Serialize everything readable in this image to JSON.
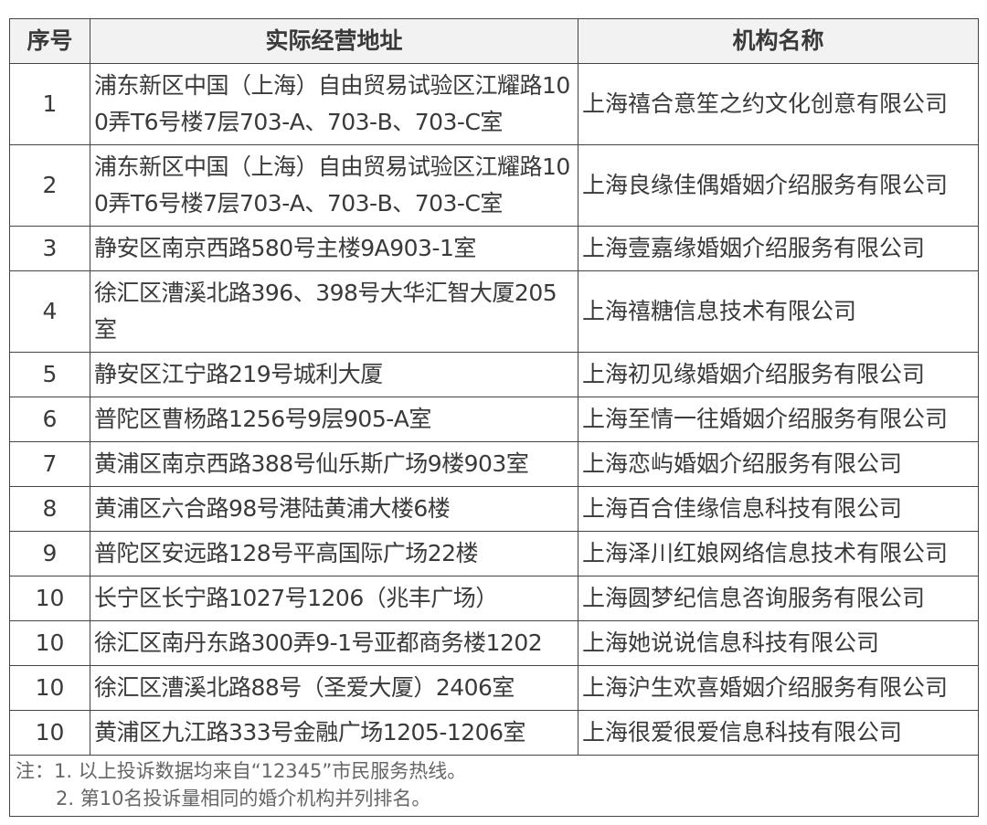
{
  "table": {
    "headers": [
      "序号",
      "实际经营地址",
      "机构名称"
    ],
    "rows": [
      {
        "rank": "1",
        "address": "浦东新区中国（上海）自由贸易试验区江耀路100弄T6号楼7层703-A、703-B、703-C室",
        "org": "上海禧合意笙之约文化创意有限公司"
      },
      {
        "rank": "2",
        "address": "浦东新区中国（上海）自由贸易试验区江耀路100弄T6号楼7层703-A、703-B、703-C室",
        "org": "上海良缘佳偶婚姻介绍服务有限公司"
      },
      {
        "rank": "3",
        "address": "静安区南京西路580号主楼9A903-1室",
        "org": "上海壹嘉缘婚姻介绍服务有限公司"
      },
      {
        "rank": "4",
        "address": "徐汇区漕溪北路396、398号大华汇智大厦205室",
        "org": "上海禧糖信息技术有限公司"
      },
      {
        "rank": "5",
        "address": "静安区江宁路219号城利大厦",
        "org": "上海初见缘婚姻介绍服务有限公司"
      },
      {
        "rank": "6",
        "address": "普陀区曹杨路1256号9层905-A室",
        "org": "上海至情一往婚姻介绍服务有限公司"
      },
      {
        "rank": "7",
        "address": "黄浦区南京西路388号仙乐斯广场9楼903室",
        "org": "上海恋屿婚姻介绍服务有限公司"
      },
      {
        "rank": "8",
        "address": "黄浦区六合路98号港陆黄浦大楼6楼",
        "org": "上海百合佳缘信息科技有限公司"
      },
      {
        "rank": "9",
        "address": "普陀区安远路128号平高国际广场22楼",
        "org": "上海泽川红娘网络信息技术有限公司"
      },
      {
        "rank": "10",
        "address": "长宁区长宁路1027号1206（兆丰广场）",
        "org": "上海圆梦纪信息咨询服务有限公司"
      },
      {
        "rank": "10",
        "address": "徐汇区南丹东路300弄9-1号亚都商务楼1202",
        "org": "上海她说说信息科技有限公司"
      },
      {
        "rank": "10",
        "address": "徐汇区漕溪北路88号（圣爱大厦）2406室",
        "org": "上海沪生欢喜婚姻介绍服务有限公司"
      },
      {
        "rank": "10",
        "address": "黄浦区九江路333号金融广场1205-1206室",
        "org": "上海很爱很爱信息科技有限公司"
      }
    ],
    "notes": [
      "注：1. 以上投诉数据均来自“12345”市民服务热线。",
      "2. 第10名投诉量相同的婚介机构并列排名。"
    ]
  }
}
